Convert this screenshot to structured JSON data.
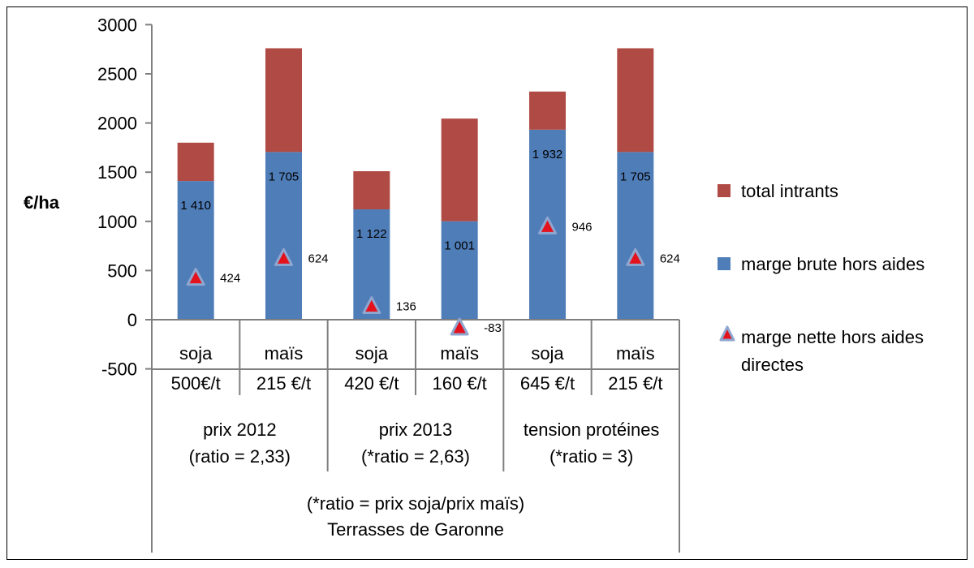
{
  "chart_data": {
    "type": "bar",
    "stacked": true,
    "ylabel": "€/ha",
    "ylim": [
      -500,
      3000
    ],
    "yticks": [
      -500,
      0,
      500,
      1000,
      1500,
      2000,
      2500,
      3000
    ],
    "grid": false,
    "legend_position": "right",
    "categories": [
      "soja",
      "maïs",
      "soja",
      "maïs",
      "soja",
      "maïs"
    ],
    "category_prices": [
      "500€/t",
      "215 €/t",
      "420 €/t",
      "160 €/t",
      "645 €/t",
      "215 €/t"
    ],
    "groups": [
      {
        "label_line1": "prix 2012",
        "label_line2": "(ratio = 2,33)"
      },
      {
        "label_line1": "prix 2013",
        "label_line2": "(*ratio = 2,63)"
      },
      {
        "label_line1": "tension protéines",
        "label_line2": "(*ratio = 3)"
      }
    ],
    "footer_line1": "(*ratio = prix soja/prix maïs)",
    "footer_line2": "Terrasses de Garonne",
    "series": [
      {
        "name": "marge brute hors aides",
        "color": "#4F7DB8",
        "values": [
          1410,
          1705,
          1122,
          1001,
          1932,
          1705
        ],
        "data_labels": [
          "1 410",
          "1 705",
          "1 122",
          "1 001",
          "1 932",
          "1 705"
        ]
      },
      {
        "name": "total intrants",
        "color": "#B04A45",
        "values": [
          390,
          1055,
          388,
          1044,
          388,
          1055
        ]
      },
      {
        "name": "marge nette hors aides directes",
        "type": "marker",
        "marker": "triangle",
        "color": "#E3121C",
        "edge_color": "#8FA6CF",
        "values": [
          424,
          624,
          136,
          -83,
          946,
          624
        ],
        "data_labels": [
          "424",
          "624",
          "136",
          "-83",
          "946",
          "624"
        ]
      }
    ],
    "legend": [
      {
        "name": "total intrants",
        "color": "#B04A45",
        "symbol": "square"
      },
      {
        "name": "marge brute hors aides",
        "color": "#4F7DB8",
        "symbol": "square"
      },
      {
        "name_line1": "marge nette hors aides",
        "name_line2": "directes",
        "color": "#E3121C",
        "symbol": "triangle"
      }
    ]
  }
}
